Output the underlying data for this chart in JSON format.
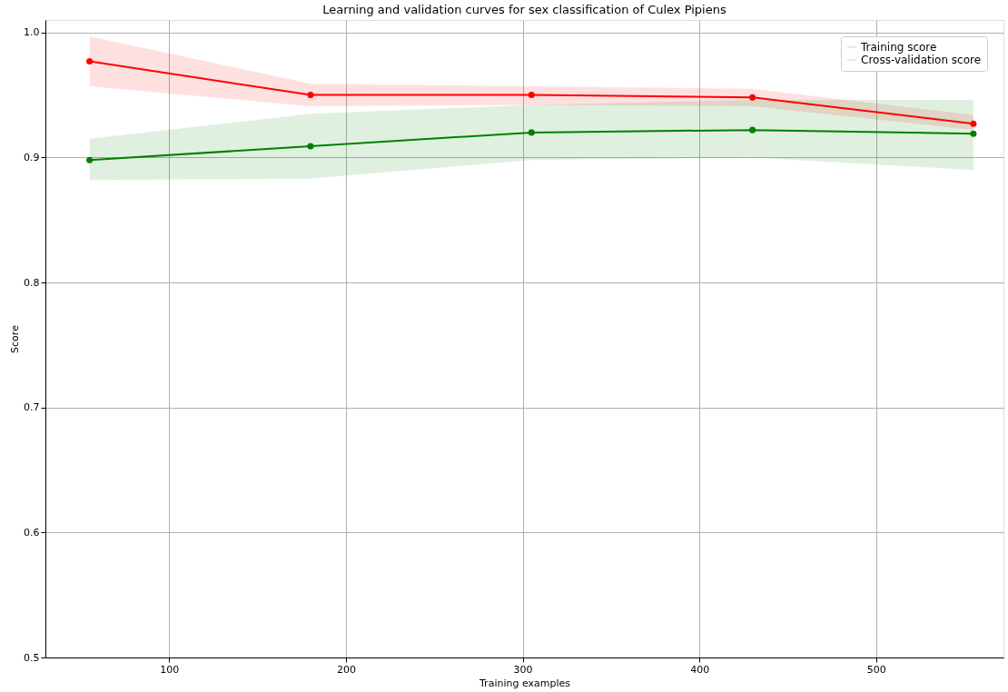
{
  "chart_data": {
    "type": "line",
    "title": "Learning and validation curves for sex classification of Culex Pipiens",
    "xlabel": "Training examples",
    "ylabel": "Score",
    "x": [
      55,
      180,
      305,
      430,
      555
    ],
    "series": [
      {
        "name": "Training score",
        "color": "#ff0000",
        "values": [
          0.977,
          0.95,
          0.95,
          0.948,
          0.927
        ],
        "lower": [
          0.957,
          0.941,
          0.942,
          0.941,
          0.922
        ],
        "upper": [
          0.997,
          0.959,
          0.957,
          0.955,
          0.934
        ]
      },
      {
        "name": "Cross-validation score",
        "color": "#008000",
        "values": [
          0.898,
          0.909,
          0.92,
          0.922,
          0.919
        ],
        "lower": [
          0.882,
          0.883,
          0.898,
          0.9,
          0.89
        ],
        "upper": [
          0.915,
          0.935,
          0.942,
          0.946,
          0.946
        ]
      }
    ],
    "xlim": [
      30,
      572
    ],
    "xticks": [
      100,
      200,
      300,
      400,
      500
    ],
    "ylim": [
      0.5,
      1.01
    ],
    "yticks": [
      0.5,
      0.6,
      0.7,
      0.8,
      0.9,
      {
        "value": 1,
        "label": "1.0"
      }
    ],
    "grid": true,
    "legend": "top right",
    "marker": "circle",
    "line_style": "solid"
  }
}
